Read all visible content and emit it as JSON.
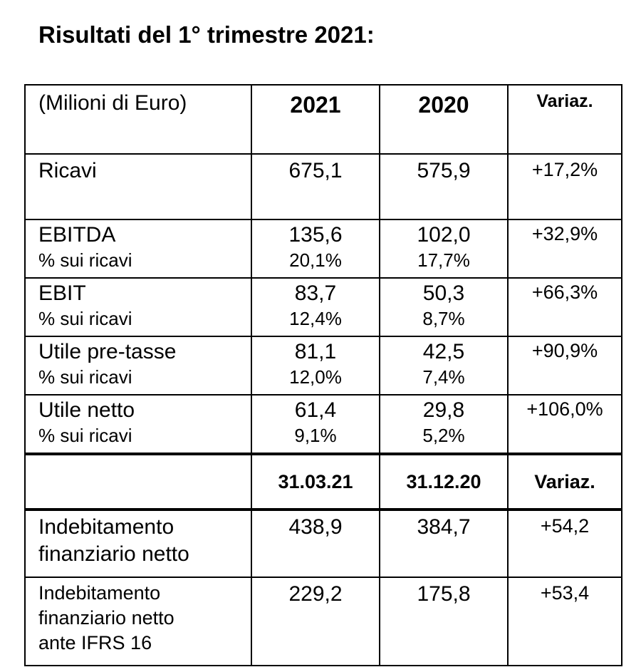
{
  "title": "Risultati del 1° trimestre 2021:",
  "header": {
    "unit_label": "(Milioni di Euro)",
    "col_2021": "2021",
    "col_2020": "2020",
    "col_var": "Variaz."
  },
  "rows": [
    {
      "label": "Ricavi",
      "v2021": "675,1",
      "v2020": "575,9",
      "var": "+17,2%"
    },
    {
      "label": "EBITDA",
      "sub": "% sui ricavi",
      "v2021": "135,6",
      "p2021": "20,1%",
      "v2020": "102,0",
      "p2020": "17,7%",
      "var": "+32,9%"
    },
    {
      "label": "EBIT",
      "sub": "% sui ricavi",
      "v2021": "83,7",
      "p2021": "12,4%",
      "v2020": "50,3",
      "p2020": "8,7%",
      "var": "+66,3%"
    },
    {
      "label": "Utile pre-tasse",
      "sub": "% sui ricavi",
      "v2021": "81,1",
      "p2021": "12,0%",
      "v2020": "42,5",
      "p2020": "7,4%",
      "var": "+90,9%"
    },
    {
      "label": "Utile netto",
      "sub": "% sui ricavi",
      "v2021": "61,4",
      "p2021": "9,1%",
      "v2020": "29,8",
      "p2020": "5,2%",
      "var": "+106,0%"
    }
  ],
  "header2": {
    "blank": "",
    "col_a": "31.03.21",
    "col_b": "31.12.20",
    "col_var": "Variaz."
  },
  "debt_rows": [
    {
      "label_line1": "Indebitamento",
      "label_line2": "finanziario netto",
      "va": "438,9",
      "vb": "384,7",
      "var": "+54,2"
    },
    {
      "label_line1": "Indebitamento",
      "label_line2": "finanziario netto",
      "label_line3": "ante IFRS 16",
      "va": "229,2",
      "vb": "175,8",
      "var": "+53,4"
    }
  ]
}
